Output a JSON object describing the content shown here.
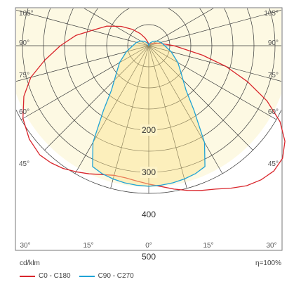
{
  "chart_data": {
    "type": "polar",
    "units": "cd/klm",
    "efficiency": "η=100%",
    "radial_ticks": [
      {
        "value": 200,
        "label": "200"
      },
      {
        "value": 300,
        "label": "300"
      },
      {
        "value": 400,
        "label": "400"
      },
      {
        "value": 500,
        "label": "500"
      }
    ],
    "angle_labels": {
      "left": [
        "105°",
        "90°",
        "75°",
        "60°",
        "45°"
      ],
      "right": [
        "105°",
        "90°",
        "75°",
        "60°",
        "45°"
      ],
      "bottom": [
        "30°",
        "15°",
        "0°",
        "15°",
        "30°"
      ]
    },
    "grid": true,
    "rmax": 500,
    "series": [
      {
        "name": "C0 - C180",
        "color": "#d9262c",
        "angles": [
          -180,
          -172,
          -165,
          -155,
          -145,
          -135,
          -125,
          -115,
          -105,
          -98,
          -90,
          -82,
          -75,
          -68,
          -60,
          -52,
          -45,
          -40,
          -35,
          -30,
          -25,
          -20,
          -15,
          -10,
          -5,
          0,
          5,
          10,
          15,
          20,
          25,
          30,
          35,
          40,
          45,
          50,
          55,
          60,
          65,
          70,
          75,
          80,
          90,
          100,
          110,
          125,
          140,
          155,
          170,
          180
        ],
        "values": [
          0,
          5,
          10,
          20,
          35,
          55,
          80,
          110,
          140,
          175,
          210,
          250,
          290,
          320,
          345,
          360,
          366,
          362,
          355,
          345,
          335,
          325,
          318,
          318,
          322,
          328,
          335,
          345,
          355,
          365,
          375,
          390,
          405,
          415,
          420,
          415,
          395,
          360,
          310,
          250,
          190,
          130,
          60,
          30,
          18,
          10,
          6,
          3,
          1,
          0
        ]
      },
      {
        "name": "C90 - C270",
        "color": "#1fa3d6",
        "angles": [
          -180,
          -165,
          -150,
          -135,
          -120,
          -105,
          -90,
          -75,
          -60,
          -50,
          -40,
          -35,
          -30,
          -25,
          -20,
          -15,
          -10,
          -5,
          0,
          5,
          10,
          15,
          20,
          25,
          30,
          35,
          40,
          50,
          60,
          75,
          90,
          105,
          120,
          135,
          150,
          165,
          180
        ],
        "values": [
          0,
          4,
          8,
          15,
          22,
          30,
          38,
          55,
          80,
          100,
          138,
          188,
          265,
          316,
          323,
          327,
          330,
          332,
          333,
          332,
          330,
          327,
          323,
          316,
          265,
          188,
          138,
          100,
          80,
          55,
          38,
          30,
          22,
          15,
          8,
          4,
          0
        ]
      }
    ]
  }
}
